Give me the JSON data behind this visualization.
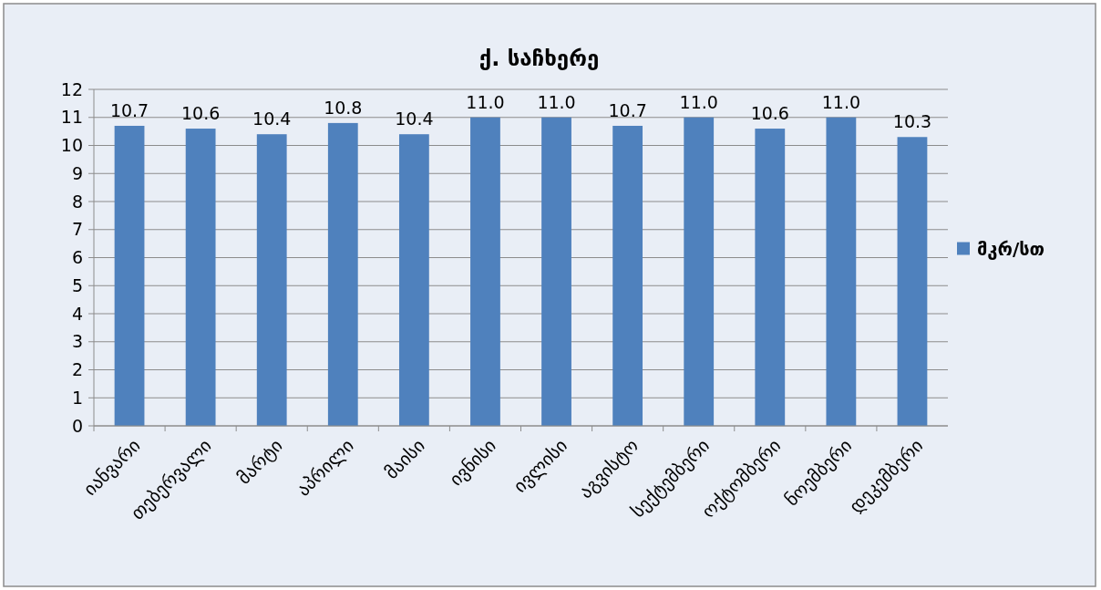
{
  "chart_data": {
    "type": "bar",
    "title": "ქ. საჩხერე",
    "categories": [
      "იანვარი",
      "თებერვალი",
      "მარტი",
      "აპრილი",
      "მაისი",
      "ივნისი",
      "ივლისი",
      "აგვისტო",
      "სექტემბერი",
      "ოქტომბერი",
      "ნოემბერი",
      "დეკემბერი"
    ],
    "series": [
      {
        "name": "მკრ/სთ",
        "color": "#4f81bd",
        "values": [
          10.7,
          10.6,
          10.4,
          10.8,
          10.4,
          11.0,
          11.0,
          10.7,
          11.0,
          10.6,
          11.0,
          10.3
        ],
        "value_labels": [
          "10.7",
          "10.6",
          "10.4",
          "10.8",
          "10.4",
          "11.0",
          "11.0",
          "10.7",
          "11.0",
          "10.6",
          "11.0",
          "10.3"
        ]
      }
    ],
    "ylim": [
      0,
      12
    ],
    "yticks": [
      0,
      1,
      2,
      3,
      4,
      5,
      6,
      7,
      8,
      9,
      10,
      11,
      12
    ],
    "grid": "y",
    "legend": "right"
  }
}
